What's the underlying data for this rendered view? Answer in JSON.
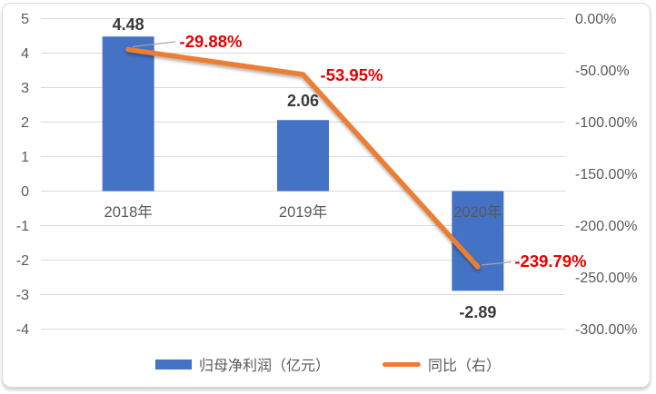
{
  "chart_data": {
    "type": "combo",
    "title": "",
    "categories": [
      "2018年",
      "2019年",
      "2020年"
    ],
    "series": [
      {
        "name": "归母净利润（亿元）",
        "type": "bar",
        "axis": "left",
        "color": "#4472C4",
        "values": [
          4.48,
          2.06,
          -2.89
        ],
        "labels": [
          "4.48",
          "2.06",
          "-2.89"
        ]
      },
      {
        "name": "同比（右）",
        "type": "line",
        "axis": "right",
        "color": "#ED7D31",
        "values": [
          -29.88,
          -53.95,
          -239.79
        ],
        "labels": [
          "-29.88%",
          "-53.95%",
          "-239.79%"
        ]
      }
    ],
    "axes": {
      "left": {
        "max": 5,
        "min": -4,
        "step": 1,
        "ticks": [
          "5",
          "4",
          "3",
          "2",
          "1",
          "0",
          "-1",
          "-2",
          "-3",
          "-4"
        ]
      },
      "right": {
        "max": 0,
        "min": -300,
        "step": 50,
        "ticks": [
          "0.00%",
          "-50.00%",
          "-100.00%",
          "-150.00%",
          "-200.00%",
          "-250.00%",
          "-300.00%"
        ]
      }
    },
    "grid": "horizontal",
    "legend": {
      "position": "bottom",
      "items": [
        {
          "label": "归母净利润（亿元）",
          "swatch": "bar",
          "color": "#4472C4"
        },
        {
          "label": "同比（右）",
          "swatch": "line",
          "color": "#ED7D31"
        }
      ]
    },
    "colors": {
      "bar": "#4472C4",
      "line": "#ED7D31",
      "bar_label": "#3a3a3a",
      "line_label": "#e60000",
      "axis_text": "#595959",
      "gridline": "#d9d9d9",
      "leader_line": "#a6a6a6"
    }
  }
}
